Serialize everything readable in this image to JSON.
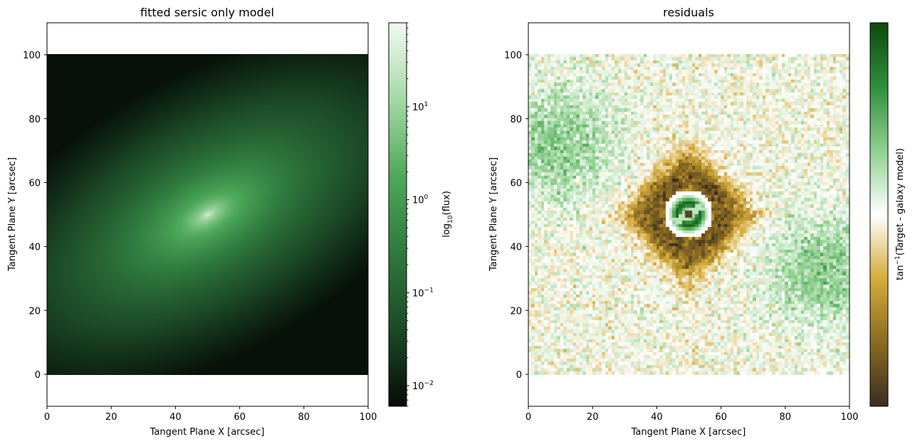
{
  "chart_data": [
    {
      "type": "heatmap",
      "title": "fitted sersic only model",
      "xlabel": "Tangent Plane X [arcsec]",
      "ylabel": "Tangent Plane Y [arcsec]",
      "xlim": [
        0,
        100
      ],
      "ylim": [
        -10,
        110
      ],
      "image_extent": [
        0,
        100,
        0,
        100
      ],
      "xticks": [
        0,
        20,
        40,
        60,
        80,
        100
      ],
      "yticks": [
        0,
        20,
        40,
        60,
        80,
        100
      ],
      "model": {
        "center": [
          50,
          50
        ],
        "position_angle_deg": 30,
        "axis_ratio": 0.5,
        "peak_flux": 80,
        "min_flux": 0.007
      },
      "colorbar": {
        "label_main": "log",
        "label_sub": "10",
        "label_rest": "(flux)",
        "scale": "log",
        "range": [
          0.006,
          80
        ],
        "ticks": [
          {
            "value": 0.01,
            "base": "10",
            "exp": "−2"
          },
          {
            "value": 0.1,
            "base": "10",
            "exp": "−1"
          },
          {
            "value": 1,
            "base": "10",
            "exp": "0"
          },
          {
            "value": 10,
            "base": "10",
            "exp": "1"
          }
        ],
        "colors": [
          "#050c07",
          "#1c4a26",
          "#2f7a3e",
          "#4ea85a",
          "#a5d9a5",
          "#f1faf1"
        ]
      }
    },
    {
      "type": "heatmap",
      "title": "residuals",
      "xlabel": "Tangent Plane X [arcsec]",
      "ylabel": "Tangent Plane Y [arcsec]",
      "xlim": [
        0,
        100
      ],
      "ylim": [
        -10,
        110
      ],
      "image_extent": [
        0,
        100,
        0,
        100
      ],
      "xticks": [
        0,
        20,
        40,
        60,
        80,
        100
      ],
      "yticks": [
        0,
        20,
        40,
        60,
        80,
        100
      ],
      "colorbar": {
        "label_pre": "tan",
        "label_sup": "−1",
        "label_rest": "(Target - galaxy model)",
        "range": [
          -1.57,
          1.57
        ],
        "ticks": [],
        "colors": [
          "#3b2e21",
          "#8a6a22",
          "#d4ac3a",
          "#ffffff",
          "#8fd08f",
          "#2f8f3c",
          "#0c4a0e"
        ]
      }
    }
  ]
}
